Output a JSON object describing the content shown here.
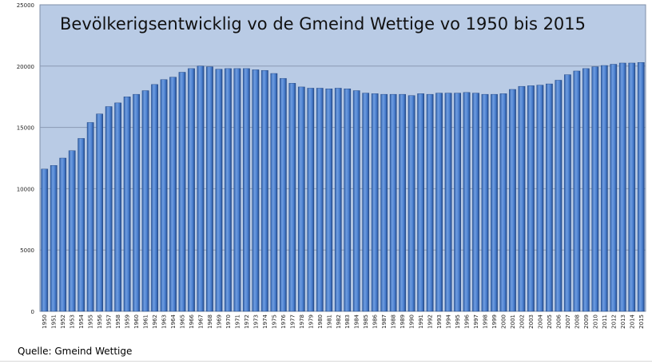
{
  "chart_data": {
    "type": "bar",
    "title": "Bevölkerigsentwicklig vo de Gmeind Wettige vo 1950 bis 2015",
    "xlabel": "",
    "ylabel": "",
    "ylim": [
      0,
      25000
    ],
    "yticks": [
      0,
      5000,
      10000,
      15000,
      20000,
      25000
    ],
    "grid": true,
    "legend": "none",
    "colors": {
      "plot_bg": "#b9cbe5",
      "bar_fill": "#4a7fcf",
      "bar_edge": "#1c3f7a",
      "grid": "#8a9ab3"
    },
    "categories": [
      "1950",
      "1951",
      "1952",
      "1953",
      "1954",
      "1955",
      "1956",
      "1957",
      "1958",
      "1959",
      "1960",
      "1961",
      "1962",
      "1963",
      "1964",
      "1965",
      "1966",
      "1967",
      "1968",
      "1969",
      "1970",
      "1971",
      "1972",
      "1973",
      "1974",
      "1975",
      "1976",
      "1977",
      "1978",
      "1979",
      "1980",
      "1981",
      "1982",
      "1983",
      "1984",
      "1985",
      "1986",
      "1987",
      "1988",
      "1989",
      "1990",
      "1991",
      "1992",
      "1993",
      "1994",
      "1995",
      "1996",
      "1997",
      "1998",
      "1999",
      "2000",
      "2001",
      "2002",
      "2003",
      "2004",
      "2005",
      "2006",
      "2007",
      "2008",
      "2009",
      "2010",
      "2011",
      "2012",
      "2013",
      "2014",
      "2015"
    ],
    "values": [
      11600,
      11900,
      12500,
      13100,
      14100,
      15400,
      16100,
      16700,
      17000,
      17500,
      17700,
      18000,
      18500,
      18900,
      19100,
      19500,
      19800,
      20000,
      19950,
      19750,
      19800,
      19800,
      19800,
      19700,
      19650,
      19400,
      19000,
      18600,
      18300,
      18200,
      18200,
      18150,
      18200,
      18150,
      18000,
      17800,
      17750,
      17700,
      17700,
      17700,
      17600,
      17750,
      17700,
      17800,
      17800,
      17800,
      17850,
      17800,
      17700,
      17700,
      17750,
      18100,
      18350,
      18400,
      18450,
      18550,
      18850,
      19300,
      19600,
      19800,
      19950,
      20050,
      20150,
      20250,
      20250,
      20300
    ]
  },
  "source": "Quelle: Gmeind Wettige"
}
